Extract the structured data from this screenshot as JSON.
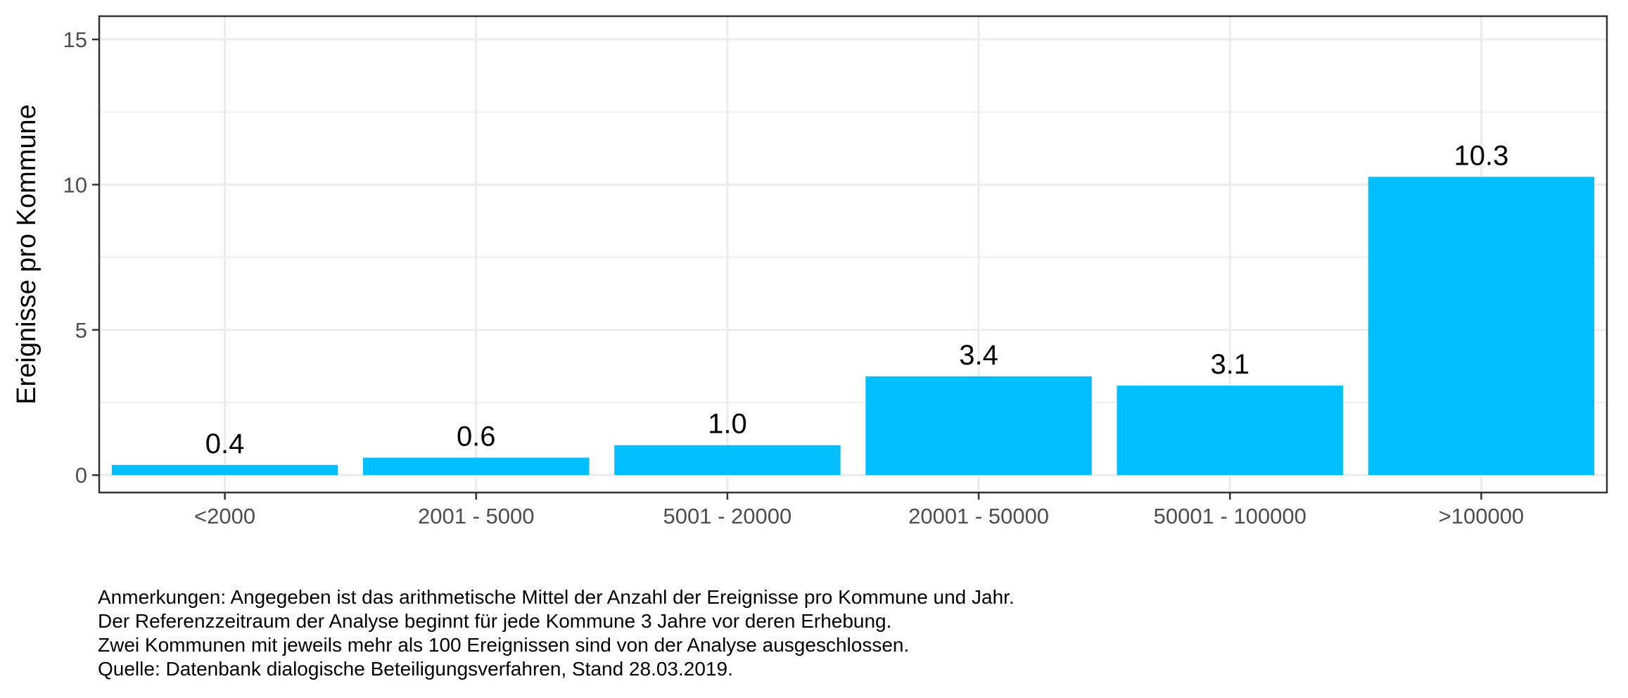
{
  "chart_data": {
    "type": "bar",
    "categories": [
      "<2000",
      "2001 - 5000",
      "5001 - 20000",
      "20001 - 50000",
      "50001 - 100000",
      ">100000"
    ],
    "values": [
      0.35,
      0.6,
      1.03,
      3.4,
      3.08,
      10.27
    ],
    "data_labels": [
      "0.4",
      "0.6",
      "1.0",
      "3.4",
      "3.1",
      "10.3"
    ],
    "ylabel": "Ereignisse pro Kommune",
    "xlabel": "",
    "ylim": [
      -0.6,
      15.8
    ],
    "y_ticks": [
      0,
      5,
      10,
      15
    ],
    "grid": true,
    "bar_color": "#00BFFF",
    "legend": "none"
  },
  "notes": [
    "Anmerkungen: Angegeben ist das arithmetische Mittel der Anzahl der Ereignisse pro Kommune und Jahr.",
    "Der Referenzzeitraum der Analyse beginnt für jede Kommune 3 Jahre vor deren Erhebung.",
    "Zwei Kommunen mit jeweils mehr als 100 Ereignissen sind von der Analyse ausgeschlossen.",
    "Quelle: Datenbank dialogische Beteiligungsverfahren, Stand 28.03.2019."
  ]
}
